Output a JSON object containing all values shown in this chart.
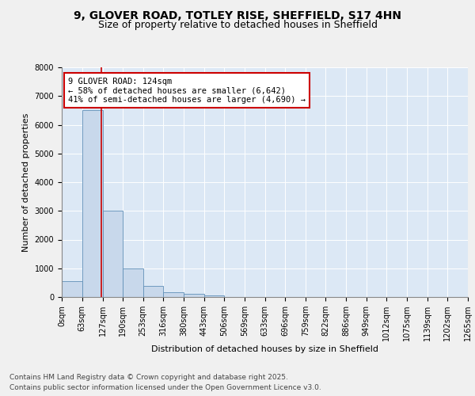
{
  "title_line1": "9, GLOVER ROAD, TOTLEY RISE, SHEFFIELD, S17 4HN",
  "title_line2": "Size of property relative to detached houses in Sheffield",
  "xlabel": "Distribution of detached houses by size in Sheffield",
  "ylabel": "Number of detached properties",
  "bin_edges": [
    0,
    63,
    127,
    190,
    253,
    316,
    380,
    443,
    506,
    569,
    633,
    696,
    759,
    822,
    886,
    949,
    1012,
    1075,
    1139,
    1202,
    1265
  ],
  "bar_heights": [
    550,
    6500,
    3000,
    1000,
    380,
    160,
    100,
    50,
    0,
    0,
    0,
    0,
    0,
    0,
    0,
    0,
    0,
    0,
    0,
    0
  ],
  "bar_color": "#c8d8eb",
  "bar_edge_color": "#6090b8",
  "background_color": "#dce8f5",
  "fig_background": "#f0f0f0",
  "property_size": 124,
  "annotation_text": "9 GLOVER ROAD: 124sqm\n← 58% of detached houses are smaller (6,642)\n41% of semi-detached houses are larger (4,690) →",
  "annotation_box_color": "#ffffff",
  "annotation_border_color": "#cc0000",
  "vline_color": "#cc0000",
  "ylim": [
    0,
    8000
  ],
  "yticks": [
    0,
    1000,
    2000,
    3000,
    4000,
    5000,
    6000,
    7000,
    8000
  ],
  "footer_line1": "Contains HM Land Registry data © Crown copyright and database right 2025.",
  "footer_line2": "Contains public sector information licensed under the Open Government Licence v3.0.",
  "title_fontsize": 10,
  "subtitle_fontsize": 9,
  "axis_fontsize": 8,
  "tick_fontsize": 7,
  "annotation_fontsize": 7.5,
  "footer_fontsize": 6.5
}
